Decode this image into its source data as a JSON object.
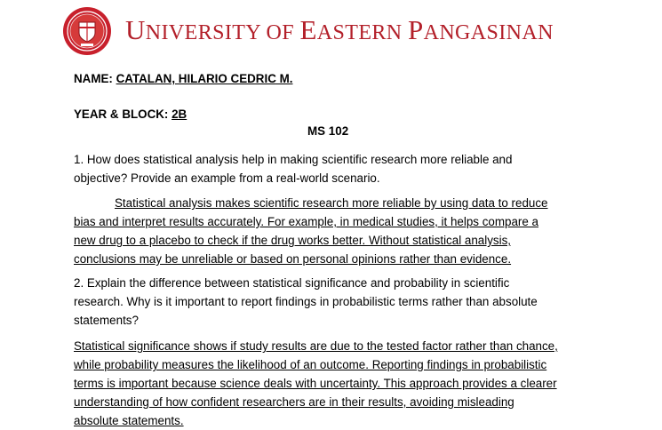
{
  "header": {
    "university_name_parts": [
      {
        "t": "U",
        "size": "big"
      },
      {
        "t": "NIVERSITY OF ",
        "size": "sm"
      },
      {
        "t": "E",
        "size": "big"
      },
      {
        "t": "ASTERN ",
        "size": "sm"
      },
      {
        "t": "P",
        "size": "big"
      },
      {
        "t": "ANGASINAN",
        "size": "sm"
      }
    ],
    "seal_color": "#c8202c"
  },
  "student": {
    "name_label": "NAME: ",
    "name_value": "CATALAN, HILARIO CEDRIC M.",
    "yb_label": "YEAR & BLOCK: ",
    "yb_value": "2B"
  },
  "course": "MS 102",
  "q1": {
    "lines": [
      "1. How does statistical analysis help in making scientific research more reliable and",
      "objective? Provide an example from a real-world scenario."
    ]
  },
  "a1": {
    "lines": [
      "Statistical analysis makes scientific research more reliable by using data to reduce",
      "bias and interpret results accurately. For example, in medical studies, it helps compare a",
      "new drug to a placebo to check if the drug works better. Without statistical analysis,",
      "conclusions may be unreliable or based on personal opinions rather than evidence."
    ]
  },
  "q2": {
    "lines": [
      "2. Explain the difference between statistical significance and probability in scientific",
      "research. Why is it important to report findings in probabilistic terms rather than absolute",
      "statements?"
    ]
  },
  "a2": {
    "lines": [
      "Statistical significance shows if study results are due to the tested factor rather than chance,",
      "while probability measures the likelihood of an outcome. Reporting findings in probabilistic",
      "terms is important because science deals with uncertainty. This approach provides a clearer",
      "understanding of how confident researchers are in their results, avoiding misleading",
      "absolute statements."
    ]
  }
}
